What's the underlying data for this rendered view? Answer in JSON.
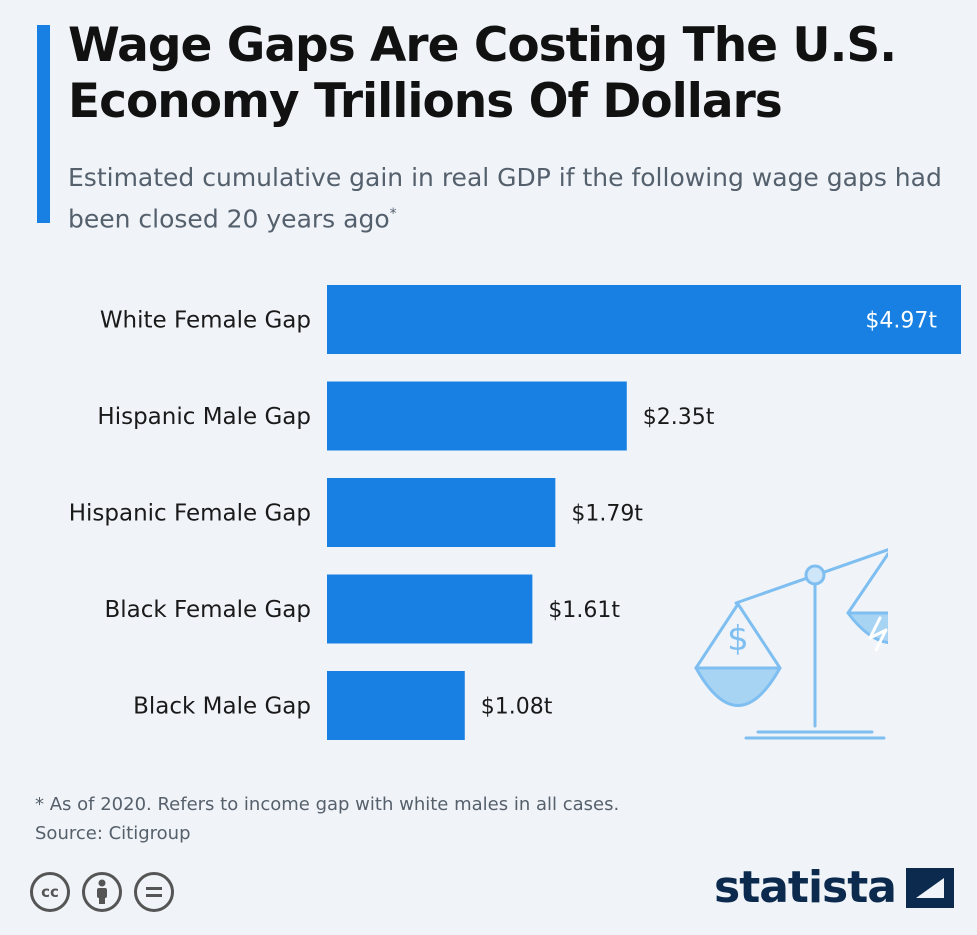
{
  "header": {
    "title": "Wage Gaps Are Costing The U.S. Economy Trillions Of Dollars",
    "subtitle": "Estimated cumulative gain in real GDP if the following wage gaps had been closed 20 years ago",
    "subtitle_marker": "*"
  },
  "chart_data": {
    "type": "bar",
    "orientation": "horizontal",
    "categories": [
      "White Female Gap",
      "Hispanic Male Gap",
      "Hispanic Female Gap",
      "Black Female Gap",
      "Black Male Gap"
    ],
    "values": [
      4.97,
      2.35,
      1.79,
      1.61,
      1.08
    ],
    "value_labels": [
      "$4.97t",
      "$2.35t",
      "$1.79t",
      "$1.61t",
      "$1.08t"
    ],
    "unit": "trillion U.S. dollars",
    "xlim": [
      0,
      4.97
    ],
    "grid": false,
    "legend": "none",
    "bar_color": "#1780e2"
  },
  "footer": {
    "note": "* As of 2020. Refers to income gap with white males in all cases.",
    "source": "Source: Citigroup",
    "brand": "statista",
    "license_icons": [
      "cc-icon",
      "attribution-icon",
      "no-derivatives-icon"
    ]
  },
  "colors": {
    "accent": "#1780e2",
    "background": "#f0f4f9",
    "brand_dark": "#0c2a4d",
    "illustration": "#7fbef0"
  }
}
